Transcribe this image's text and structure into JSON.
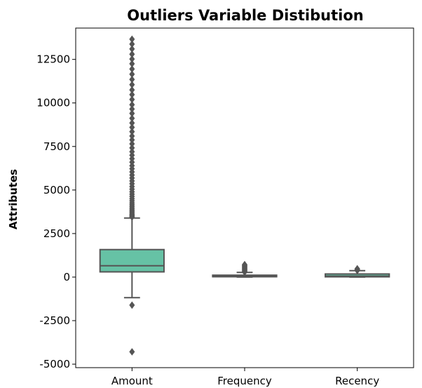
{
  "chart_data": {
    "type": "box",
    "title": "Outliers Variable Distibution",
    "xlabel": "",
    "ylabel": "Attributes",
    "ylim": [
      -5200,
      14300
    ],
    "yticks": [
      -5000,
      -2500,
      0,
      2500,
      5000,
      7500,
      10000,
      12500
    ],
    "grid": false,
    "colors": {
      "box_fill": "#66c2a5",
      "lines": "#555555"
    },
    "categories": [
      "Amount",
      "Frequency",
      "Recency"
    ],
    "boxes": [
      {
        "name": "Amount",
        "q1": 300,
        "median": 650,
        "q3": 1580,
        "whisker_low": -1180,
        "whisker_high": 3390,
        "outliers": [
          -1610,
          -4290,
          3450,
          3500,
          3560,
          3620,
          3700,
          3780,
          3860,
          3950,
          4050,
          4150,
          4260,
          4380,
          4500,
          4630,
          4760,
          4900,
          5050,
          5200,
          5360,
          5520,
          5690,
          5860,
          6040,
          6220,
          6400,
          6600,
          6800,
          7000,
          7200,
          7420,
          7650,
          7880,
          8100,
          8350,
          8600,
          8850,
          9120,
          9400,
          9650,
          9900,
          10200,
          10480,
          10750,
          11050,
          11350,
          11650,
          11950,
          12250,
          12520,
          12800,
          13100,
          13380,
          13660
        ]
      },
      {
        "name": "Frequency",
        "q1": 20,
        "median": 55,
        "q3": 110,
        "whisker_low": 0,
        "whisker_high": 270,
        "outliers": [
          290,
          320,
          360,
          400,
          440,
          480,
          520,
          560,
          600,
          640,
          680,
          720
        ]
      },
      {
        "name": "Recency",
        "q1": 15,
        "median": 60,
        "q3": 180,
        "whisker_low": 0,
        "whisker_high": 370,
        "outliers": [
          380,
          400,
          420,
          450,
          480
        ]
      }
    ]
  }
}
